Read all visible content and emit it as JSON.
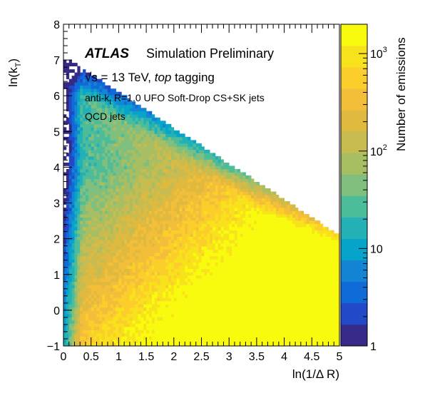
{
  "chart_data": {
    "type": "heatmap",
    "xlabel": "ln(1/Δ R)",
    "ylabel_main": "ln(k",
    "ylabel_sub": "T",
    "ylabel_close": ")",
    "xlim": [
      0,
      5
    ],
    "ylim": [
      -1,
      8
    ],
    "xticks": [
      "0",
      "0.5",
      "1",
      "1.5",
      "2",
      "2.5",
      "3",
      "3.5",
      "4",
      "4.5",
      "5"
    ],
    "yticks": [
      "−1",
      "0",
      "1",
      "2",
      "3",
      "4",
      "5",
      "6",
      "7",
      "8"
    ],
    "x_tick_values": [
      0,
      0.5,
      1,
      1.5,
      2,
      2.5,
      3,
      3.5,
      4,
      4.5,
      5
    ],
    "y_tick_values": [
      -1,
      0,
      1,
      2,
      3,
      4,
      5,
      6,
      7,
      8
    ],
    "boundary_line": {
      "x": [
        0,
        5
      ],
      "y": [
        7.1,
        2.1
      ]
    },
    "z_scale": "log",
    "z_range": [
      1,
      2000
    ],
    "colorbar": {
      "title": "Number of emissions",
      "labels": [
        {
          "value": 1,
          "text": "1"
        },
        {
          "value": 10,
          "text": "10"
        },
        {
          "value": 100,
          "mantissa": "10",
          "exp": "2"
        },
        {
          "value": 1000,
          "mantissa": "10",
          "exp": "3"
        }
      ],
      "colors": [
        "#352a87",
        "#2249c8",
        "#0f6bd8",
        "#1485d4",
        "#06a4ca",
        "#23b1b5",
        "#4dbc9a",
        "#80bf7d",
        "#a8be62",
        "#c8bc50",
        "#e0b93f",
        "#f3bf3a",
        "#fbce2c",
        "#f8e21c",
        "#f9fb0e"
      ]
    },
    "legend": {
      "atlas": "ATLAS",
      "atlas_suffix": "Simulation Preliminary",
      "sqrt_s": "√s = 13 TeV, ",
      "tagging_italic": "top",
      "tagging_suffix": " tagging",
      "jets_prefix": "anti-k",
      "jets_sub": "t",
      "jets_suffix": " R=1.0 UFO Soft-Drop CS+SK jets",
      "sample": "QCD jets"
    }
  }
}
